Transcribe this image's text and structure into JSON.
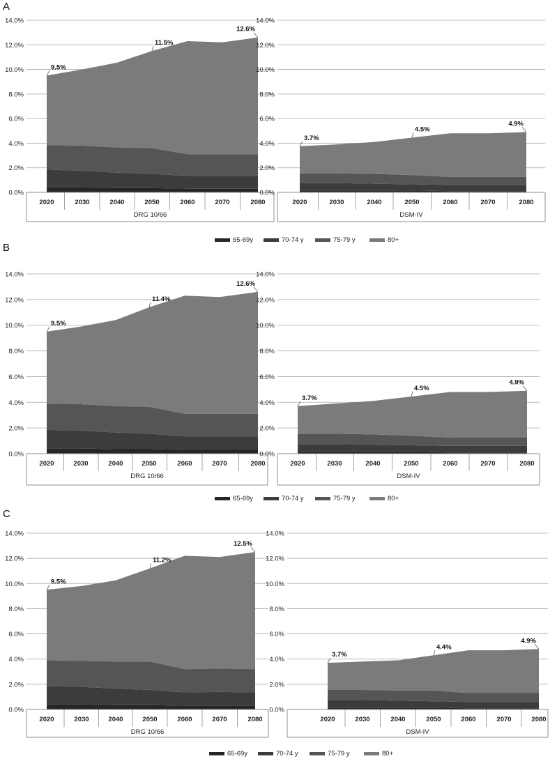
{
  "colors": {
    "s65": "#262626",
    "s70": "#3c3c3c",
    "s75": "#555555",
    "s80": "#7b7b7b",
    "grid": "#a6a6a6",
    "axis": "#8c8c8c"
  },
  "legend": [
    "65-69y",
    "70-74 y",
    "75-79 y",
    "80+"
  ],
  "chart_data": [
    {
      "panel": "A",
      "type": "area",
      "stacked": true,
      "yticks": [
        "0.0%",
        "2.0%",
        "4.0%",
        "6.0%",
        "8.0%",
        "10.0%",
        "12.0%",
        "14.0%"
      ],
      "ylim": [
        0,
        14
      ],
      "grid": true,
      "legend_position": "bottom",
      "groups": [
        {
          "label": "DRG 10/66",
          "x": [
            "2020",
            "2030",
            "2040",
            "2050",
            "2060",
            "2070",
            "2080"
          ],
          "series": [
            {
              "name": "65-69y",
              "values": [
                0.4,
                0.4,
                0.35,
                0.35,
                0.3,
                0.3,
                0.3
              ]
            },
            {
              "name": "70-74 y",
              "values": [
                1.45,
                1.35,
                1.25,
                1.15,
                1.05,
                1.05,
                1.05
              ]
            },
            {
              "name": "75-79 y",
              "values": [
                2.0,
                2.05,
                2.05,
                2.1,
                1.75,
                1.75,
                1.75
              ]
            },
            {
              "name": "80+",
              "values": [
                5.65,
                6.2,
                6.9,
                7.9,
                9.2,
                9.1,
                9.5
              ]
            }
          ],
          "annotations": [
            {
              "x": "2020",
              "text": "9.5%"
            },
            {
              "x": "2050",
              "text": "11.5%"
            },
            {
              "x": "2080",
              "text": "12.6%"
            }
          ]
        },
        {
          "label": "DSM-IV",
          "x": [
            "2020",
            "2030",
            "2040",
            "2050",
            "2060",
            "2070",
            "2080"
          ],
          "series": [
            {
              "name": "65-69y",
              "values": [
                0.15,
                0.15,
                0.15,
                0.15,
                0.1,
                0.1,
                0.1
              ]
            },
            {
              "name": "70-74 y",
              "values": [
                0.6,
                0.6,
                0.55,
                0.5,
                0.5,
                0.5,
                0.5
              ]
            },
            {
              "name": "75-79 y",
              "values": [
                0.8,
                0.8,
                0.8,
                0.75,
                0.65,
                0.65,
                0.65
              ]
            },
            {
              "name": "80+",
              "values": [
                2.2,
                2.35,
                2.6,
                3.05,
                3.55,
                3.55,
                3.65
              ]
            }
          ],
          "annotations": [
            {
              "x": "2020",
              "text": "3.7%"
            },
            {
              "x": "2050",
              "text": "4.5%"
            },
            {
              "x": "2080",
              "text": "4.9%"
            }
          ]
        }
      ]
    },
    {
      "panel": "B",
      "type": "area",
      "stacked": true,
      "yticks": [
        "0.0%",
        "2.0%",
        "4.0%",
        "6.0%",
        "8.0%",
        "10.0%",
        "12.0%",
        "14.0%"
      ],
      "ylim": [
        0,
        14
      ],
      "grid": true,
      "legend_position": "bottom",
      "groups": [
        {
          "label": "DRG 10/66",
          "x": [
            "2020",
            "2030",
            "2040",
            "2050",
            "2060",
            "2070",
            "2080"
          ],
          "series": [
            {
              "name": "65-69y",
              "values": [
                0.4,
                0.4,
                0.35,
                0.35,
                0.3,
                0.3,
                0.3
              ]
            },
            {
              "name": "70-74 y",
              "values": [
                1.45,
                1.4,
                1.3,
                1.2,
                1.05,
                1.05,
                1.05
              ]
            },
            {
              "name": "75-79 y",
              "values": [
                2.05,
                2.05,
                2.05,
                2.1,
                1.75,
                1.75,
                1.75
              ]
            },
            {
              "name": "80+",
              "values": [
                5.6,
                6.05,
                6.7,
                7.75,
                9.2,
                9.1,
                9.5
              ]
            }
          ],
          "annotations": [
            {
              "x": "2020",
              "text": "9.5%"
            },
            {
              "x": "2050",
              "text": "11.4%"
            },
            {
              "x": "2080",
              "text": "12.6%"
            }
          ]
        },
        {
          "label": "DSM-IV",
          "x": [
            "2020",
            "2030",
            "2040",
            "2050",
            "2060",
            "2070",
            "2080"
          ],
          "series": [
            {
              "name": "65-69y",
              "values": [
                0.15,
                0.15,
                0.15,
                0.15,
                0.1,
                0.1,
                0.1
              ]
            },
            {
              "name": "70-74 y",
              "values": [
                0.6,
                0.6,
                0.55,
                0.5,
                0.5,
                0.5,
                0.5
              ]
            },
            {
              "name": "75-79 y",
              "values": [
                0.8,
                0.8,
                0.8,
                0.75,
                0.65,
                0.65,
                0.65
              ]
            },
            {
              "name": "80+",
              "values": [
                2.15,
                2.35,
                2.6,
                3.05,
                3.55,
                3.55,
                3.65
              ]
            }
          ],
          "annotations": [
            {
              "x": "2020",
              "text": "3.7%"
            },
            {
              "x": "2050",
              "text": "4.5%"
            },
            {
              "x": "2080",
              "text": "4.9%"
            }
          ]
        }
      ]
    },
    {
      "panel": "C",
      "type": "area",
      "stacked": true,
      "yticks": [
        "0.0%",
        "2.0%",
        "4.0%",
        "6.0%",
        "8.0%",
        "10.0%",
        "12.0%",
        "14.0%"
      ],
      "ylim": [
        0,
        14
      ],
      "grid": true,
      "legend_position": "bottom",
      "groups": [
        {
          "label": "DRG 10/66",
          "x": [
            "2020",
            "2030",
            "2040",
            "2050",
            "2060",
            "2070",
            "2080"
          ],
          "series": [
            {
              "name": "65-69y",
              "values": [
                0.4,
                0.4,
                0.35,
                0.35,
                0.3,
                0.3,
                0.3
              ]
            },
            {
              "name": "70-74 y",
              "values": [
                1.45,
                1.4,
                1.3,
                1.2,
                1.05,
                1.1,
                1.05
              ]
            },
            {
              "name": "75-79 y",
              "values": [
                2.05,
                2.05,
                2.15,
                2.25,
                1.85,
                1.85,
                1.85
              ]
            },
            {
              "name": "80+",
              "values": [
                5.6,
                5.95,
                6.45,
                7.4,
                9.0,
                8.85,
                9.3
              ]
            }
          ],
          "annotations": [
            {
              "x": "2020",
              "text": "9.5%"
            },
            {
              "x": "2050",
              "text": "11.2%"
            },
            {
              "x": "2080",
              "text": "12.5%"
            }
          ]
        },
        {
          "label": "DSM-IV",
          "x": [
            "2020",
            "2030",
            "2040",
            "2050",
            "2060",
            "2070",
            "2080"
          ],
          "series": [
            {
              "name": "65-69y",
              "values": [
                0.15,
                0.15,
                0.15,
                0.15,
                0.1,
                0.1,
                0.1
              ]
            },
            {
              "name": "70-74 y",
              "values": [
                0.6,
                0.6,
                0.55,
                0.5,
                0.5,
                0.5,
                0.5
              ]
            },
            {
              "name": "75-79 y",
              "values": [
                0.8,
                0.8,
                0.8,
                0.85,
                0.7,
                0.7,
                0.7
              ]
            },
            {
              "name": "80+",
              "values": [
                2.15,
                2.25,
                2.4,
                2.8,
                3.4,
                3.4,
                3.5
              ]
            }
          ],
          "annotations": [
            {
              "x": "2020",
              "text": "3.7%"
            },
            {
              "x": "2050",
              "text": "4.4%"
            },
            {
              "x": "2080",
              "text": "4.9%"
            }
          ]
        }
      ]
    }
  ]
}
